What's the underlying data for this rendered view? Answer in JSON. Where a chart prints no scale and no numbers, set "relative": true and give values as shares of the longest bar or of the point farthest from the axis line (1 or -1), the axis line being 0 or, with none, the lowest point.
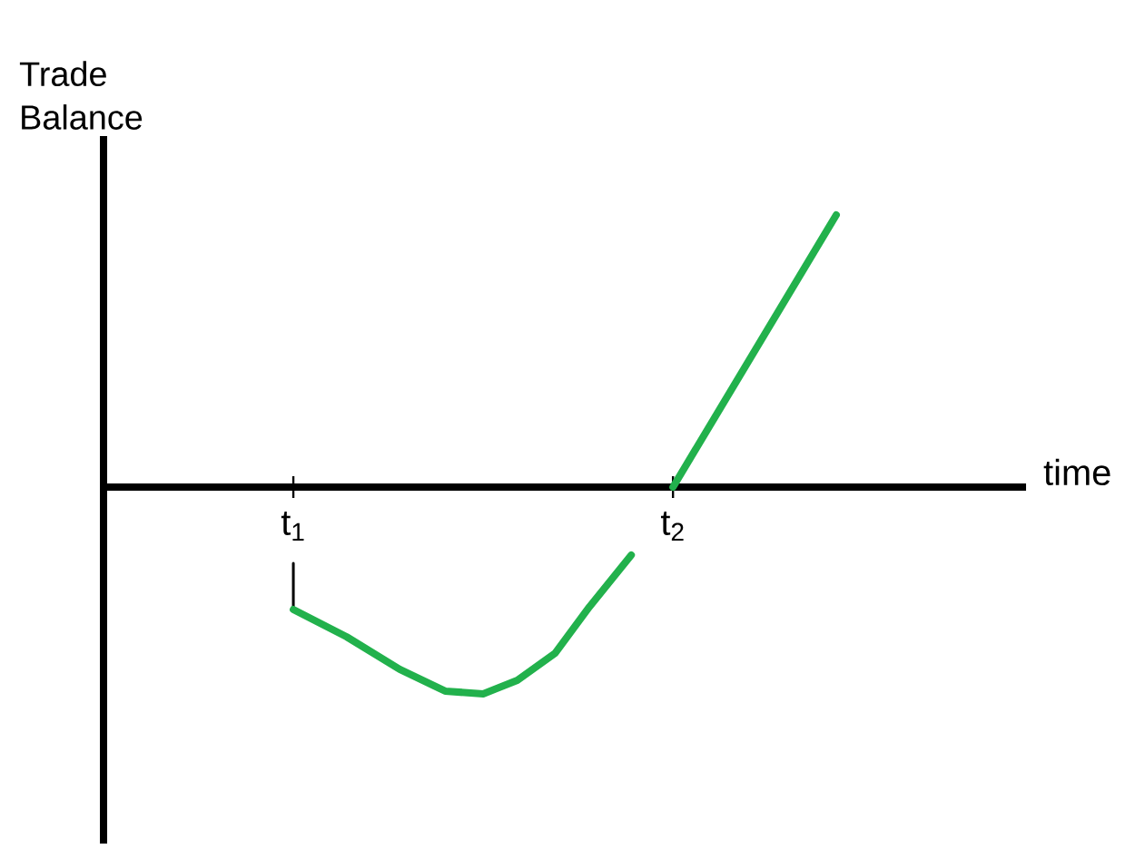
{
  "chart_data": {
    "type": "line",
    "relative": true,
    "xlabel": "time",
    "ylabel": "Trade Balance",
    "xlim": [
      0.5,
      2.93
    ],
    "xticks": [
      {
        "value": 1,
        "label": "t$_{1}$"
      },
      {
        "value": 2,
        "label": "t$_{2}$"
      }
    ],
    "line_style": "solid",
    "marker": "none",
    "grid": false,
    "series": [
      {
        "color": "#000000",
        "x": [
          1,
          1
        ],
        "values": [
          -0.28,
          -0.45
        ]
      },
      {
        "color": "#22b14c",
        "x": [
          1,
          1.14,
          1.28,
          1.4,
          1.5,
          1.59,
          1.69,
          1.78,
          1.89,
          1.95,
          2,
          2.43
        ],
        "values": [
          -0.45,
          -0.55,
          -0.67,
          -0.75,
          -0.76,
          -0.71,
          -0.61,
          -0.44,
          -0.25,
          null,
          0,
          1
        ]
      }
    ]
  }
}
